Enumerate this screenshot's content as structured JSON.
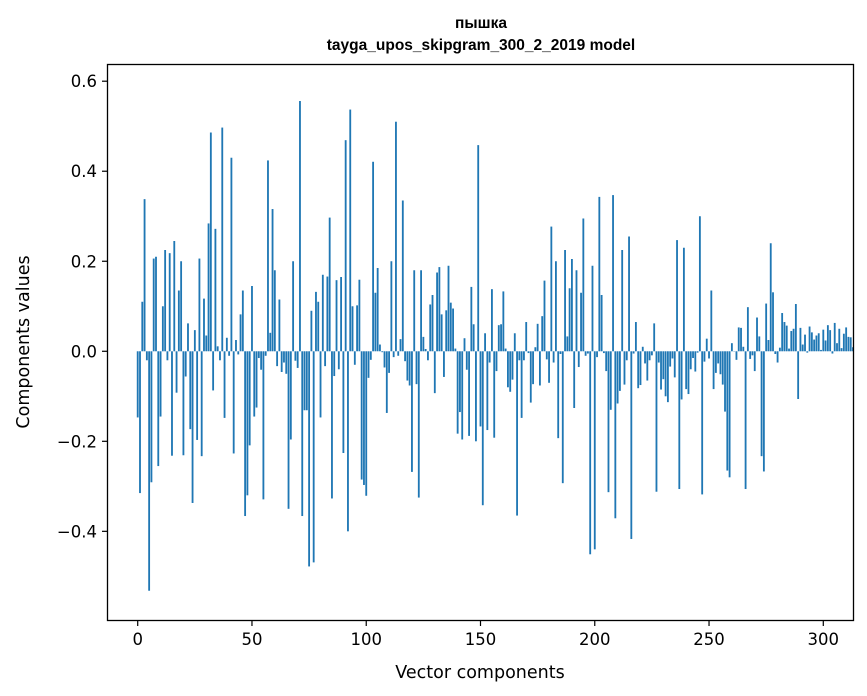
{
  "chart_data": {
    "type": "bar",
    "title": "пышка",
    "subtitle": "tayga_upos_skipgram_300_2_2019 model",
    "xlabel": "Vector components",
    "ylabel": "Components values",
    "xlim": [
      -13,
      313
    ],
    "ylim": [
      -0.597,
      0.636
    ],
    "xticks": [
      0,
      50,
      100,
      150,
      200,
      250,
      300
    ],
    "yticks": [
      -0.4,
      -0.2,
      0.0,
      0.2,
      0.4,
      0.6
    ],
    "ytick_labels": [
      "−0.4",
      "−0.2",
      "0.0",
      "0.2",
      "0.4",
      "0.6"
    ],
    "grid": false,
    "color": "#1f77b4",
    "values": [
      -0.147,
      -0.315,
      0.11,
      0.338,
      -0.02,
      -0.532,
      -0.291,
      0.206,
      0.21,
      -0.255,
      -0.145,
      0.1,
      0.225,
      -0.02,
      0.218,
      -0.232,
      0.245,
      -0.092,
      0.135,
      0.2,
      -0.231,
      -0.056,
      0.062,
      -0.173,
      -0.337,
      0.047,
      -0.197,
      0.206,
      -0.233,
      0.117,
      0.035,
      0.284,
      0.486,
      -0.087,
      0.272,
      0.011,
      -0.02,
      0.497,
      -0.148,
      0.03,
      -0.01,
      0.43,
      -0.227,
      0.025,
      -0.007,
      0.082,
      0.135,
      -0.366,
      -0.32,
      -0.209,
      0.145,
      -0.145,
      -0.125,
      -0.015,
      -0.041,
      -0.329,
      -0.01,
      0.424,
      0.041,
      0.316,
      0.18,
      -0.033,
      0.115,
      -0.046,
      -0.025,
      -0.05,
      -0.35,
      -0.196,
      0.2,
      -0.021,
      -0.037,
      0.556,
      -0.366,
      -0.131,
      -0.131,
      -0.478,
      0.09,
      -0.469,
      0.132,
      0.11,
      -0.147,
      0.17,
      -0.033,
      0.166,
      0.297,
      -0.327,
      -0.055,
      0.158,
      -0.04,
      0.165,
      -0.226,
      0.469,
      -0.4,
      0.537,
      0.1,
      -0.03,
      0.102,
      0.159,
      -0.285,
      -0.297,
      -0.321,
      -0.059,
      -0.019,
      0.421,
      0.13,
      0.185,
      0.015,
      -0.002,
      -0.036,
      -0.137,
      -0.048,
      0.2,
      -0.013,
      0.51,
      -0.01,
      0.027,
      0.335,
      -0.022,
      -0.065,
      -0.076,
      -0.268,
      0.18,
      -0.073,
      -0.325,
      0.18,
      0.032,
      0.005,
      -0.02,
      0.104,
      0.125,
      -0.093,
      0.175,
      0.187,
      0.082,
      -0.057,
      0.091,
      0.19,
      0.108,
      0.095,
      0.006,
      -0.183,
      -0.135,
      -0.196,
      0.029,
      -0.041,
      -0.188,
      0.143,
      0.06,
      -0.2,
      0.458,
      -0.167,
      -0.342,
      0.04,
      -0.175,
      -0.025,
      0.138,
      -0.192,
      -0.044,
      0.058,
      0.06,
      0.133,
      0.006,
      -0.08,
      -0.09,
      -0.063,
      0.04,
      -0.365,
      -0.02,
      -0.148,
      -0.02,
      0.065,
      -0.004,
      -0.114,
      -0.073,
      0.009,
      0.061,
      -0.076,
      0.078,
      0.157,
      -0.018,
      -0.07,
      0.277,
      -0.025,
      0.2,
      -0.193,
      -0.006,
      -0.293,
      0.225,
      0.033,
      0.14,
      0.205,
      -0.126,
      0.18,
      -0.035,
      0.13,
      0.295,
      -0.01,
      -0.005,
      -0.451,
      0.19,
      -0.44,
      -0.013,
      0.343,
      0.125,
      -0.004,
      -0.044,
      -0.313,
      -0.13,
      0.347,
      -0.371,
      -0.116,
      -0.088,
      0.225,
      -0.074,
      -0.02,
      0.255,
      -0.417,
      -0.005,
      0.065,
      -0.082,
      -0.075,
      0.01,
      -0.027,
      -0.065,
      -0.02,
      -0.009,
      0.062,
      -0.312,
      -0.025,
      -0.085,
      -0.062,
      -0.1,
      -0.113,
      -0.034,
      -0.016,
      -0.058,
      0.247,
      -0.306,
      -0.107,
      0.23,
      -0.084,
      -0.095,
      -0.04,
      -0.015,
      -0.045,
      -0.003,
      0.3,
      -0.318,
      -0.023,
      0.028,
      -0.016,
      0.135,
      -0.084,
      -0.048,
      -0.027,
      -0.051,
      -0.074,
      -0.134,
      -0.265,
      -0.28,
      0.018,
      0.0,
      -0.019,
      0.053,
      0.052,
      0.01,
      -0.306,
      0.098,
      -0.017,
      -0.009,
      -0.044,
      0.075,
      0.033,
      -0.233,
      -0.267,
      0.106,
      0.025,
      0.24,
      0.131,
      -0.006,
      -0.025,
      0.008,
      0.085,
      0.065,
      0.057,
      0.006,
      0.045,
      0.05,
      0.105,
      -0.106,
      0.052,
      0.015,
      0.037,
      -0.003,
      0.055,
      0.042,
      0.026,
      0.035,
      0.04,
      0.003,
      0.048,
      0.024,
      0.058,
      0.047,
      -0.005,
      0.063,
      0.018,
      0.05,
      0.007,
      0.039,
      0.053,
      0.032,
      0.031,
      0.009
    ]
  }
}
